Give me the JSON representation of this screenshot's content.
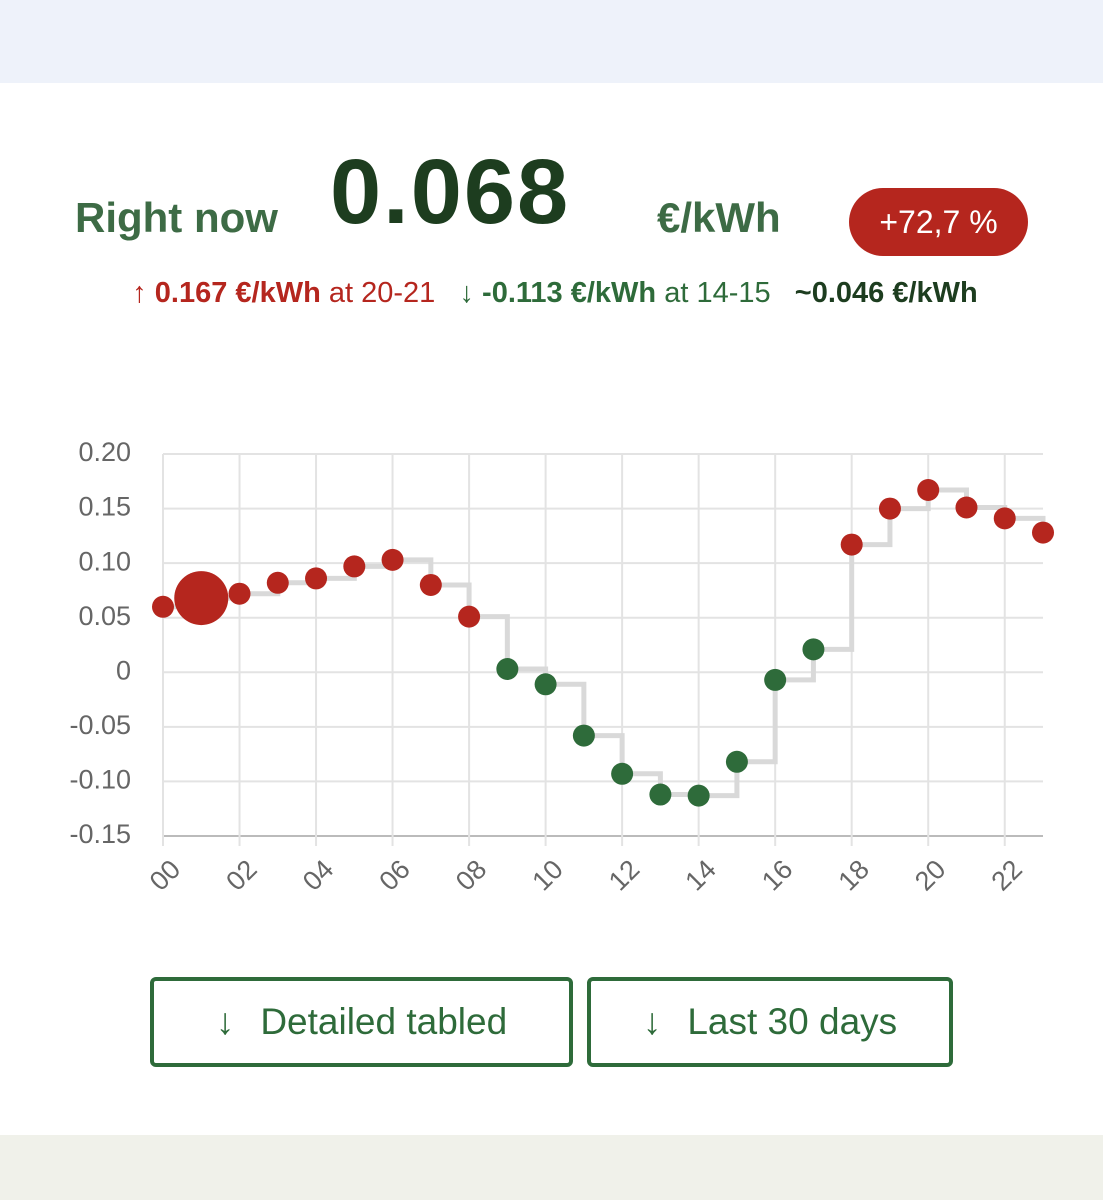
{
  "header": {
    "label": "Right now",
    "price": "0.068",
    "unit": "€/kWh",
    "change": "+72,7 %"
  },
  "stats": {
    "max_arrow": "↑",
    "max": "0.167 €/kWh",
    "max_at": "at 20-21",
    "min_arrow": "↓",
    "min": "-0.113 €/kWh",
    "min_at": "at 14-15",
    "avg": "~0.046 €/kWh"
  },
  "chart_data": {
    "type": "scatter",
    "x": [
      0,
      1,
      2,
      3,
      4,
      5,
      6,
      7,
      8,
      9,
      10,
      11,
      12,
      13,
      14,
      15,
      16,
      17,
      18,
      19,
      20,
      21,
      22,
      23
    ],
    "values": [
      0.06,
      0.068,
      0.072,
      0.082,
      0.086,
      0.097,
      0.103,
      0.08,
      0.051,
      0.003,
      -0.011,
      -0.058,
      -0.093,
      -0.112,
      -0.113,
      -0.082,
      -0.007,
      0.021,
      0.117,
      0.15,
      0.167,
      0.151,
      0.141,
      0.128
    ],
    "colors": [
      "#b5261e",
      "#b5261e",
      "#b5261e",
      "#b5261e",
      "#b5261e",
      "#b5261e",
      "#b5261e",
      "#b5261e",
      "#b5261e",
      "#2e6b3a",
      "#2e6b3a",
      "#2e6b3a",
      "#2e6b3a",
      "#2e6b3a",
      "#2e6b3a",
      "#2e6b3a",
      "#2e6b3a",
      "#2e6b3a",
      "#b5261e",
      "#b5261e",
      "#b5261e",
      "#b5261e",
      "#b5261e",
      "#b5261e"
    ],
    "step_color": "#d9d9d9",
    "highlight": 1,
    "xlim": [
      0,
      23
    ],
    "xticks": [
      {
        "value": 0,
        "label": "00"
      },
      {
        "value": 2,
        "label": "02"
      },
      {
        "value": 4,
        "label": "04"
      },
      {
        "value": 6,
        "label": "06"
      },
      {
        "value": 8,
        "label": "08"
      },
      10,
      12,
      14,
      16,
      18,
      20,
      22
    ],
    "ylim": [
      -0.15,
      0.2
    ],
    "yticks": [
      -0.15,
      {
        "value": -0.1,
        "label": "-0.10"
      },
      -0.05,
      0,
      0.05,
      {
        "value": 0.1,
        "label": "0.10"
      },
      0.15,
      {
        "value": 0.2,
        "label": "0.20"
      }
    ],
    "grid": true
  },
  "buttons": [
    {
      "icon": "↓",
      "label": "Detailed tabled"
    },
    {
      "icon": "↓",
      "label": "Last 30 days"
    }
  ]
}
